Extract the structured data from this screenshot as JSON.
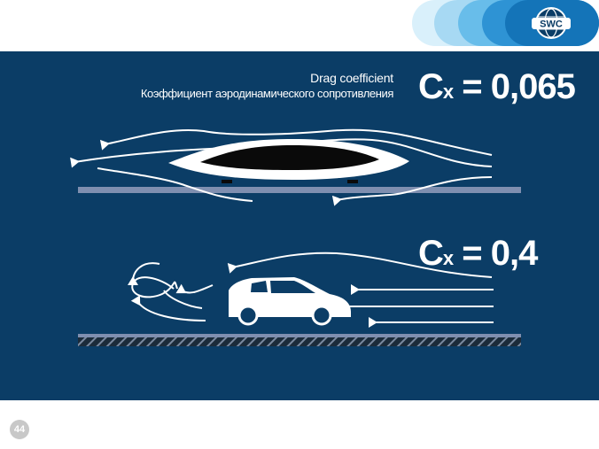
{
  "header": {
    "logo_text": "SWC",
    "colors": {
      "band_light": "#bfe3f7",
      "band_mid": "#5fb9ea",
      "band_dark": "#1d7fc4",
      "logo_bg": "#0b3d66"
    }
  },
  "panel": {
    "background": "#0b3d66"
  },
  "labels": {
    "drag_en": "Drag coefficient",
    "drag_ru": "Коэффициент аэродинамического сопротивления"
  },
  "vehicles": [
    {
      "name": "streamlined-vehicle",
      "cx_prefix": "C",
      "cx_sub": "x",
      "cx_value": "= 0,065"
    },
    {
      "name": "car",
      "cx_prefix": "C",
      "cx_sub": "x",
      "cx_value": "= 0,4"
    }
  ],
  "footer": {
    "page_number": "44"
  }
}
